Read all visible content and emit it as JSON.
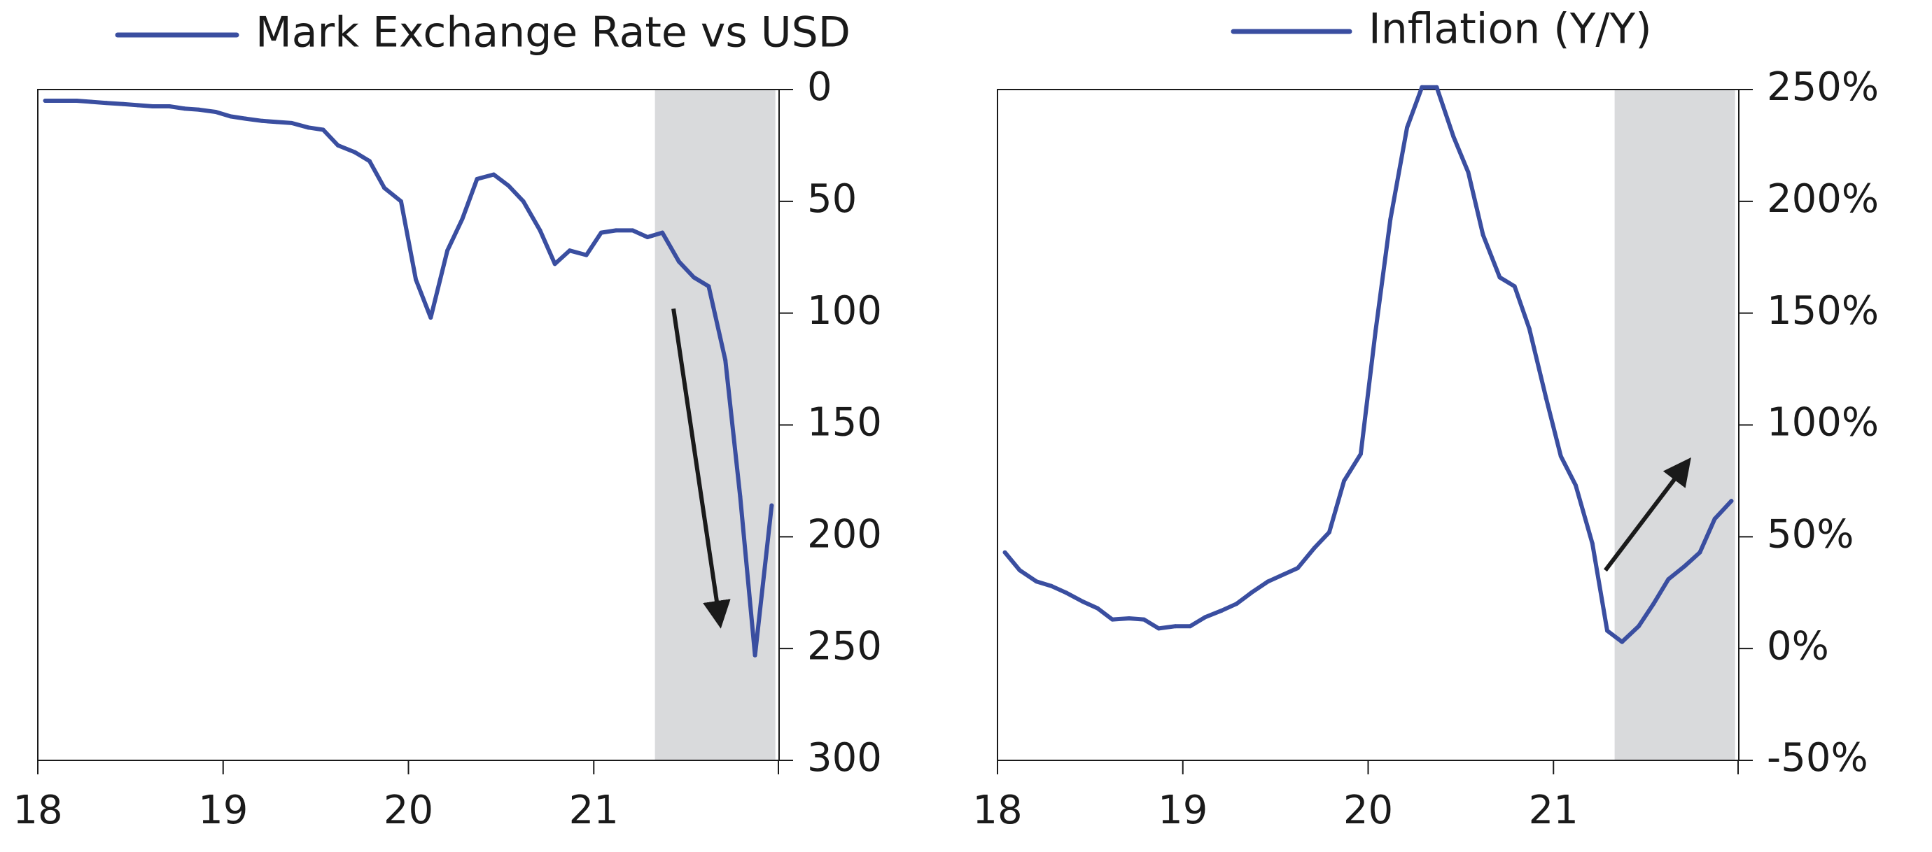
{
  "colors": {
    "series": "#3a4ea0",
    "shade": "#d9dadc",
    "axis": "#1a1a1a",
    "arrow": "#1a1a1a",
    "background": "#ffffff"
  },
  "chart_data": [
    {
      "type": "line",
      "title": "",
      "xlabel": "",
      "ylabel": "",
      "legend": {
        "position": "top",
        "entries": [
          "Mark Exchange Rate vs USD"
        ]
      },
      "y_axis": {
        "side": "right",
        "inverted": true
      },
      "xlim": [
        1918.0,
        1922.0
      ],
      "ylim": [
        0,
        300
      ],
      "x_ticks": [
        1918,
        1919,
        1920,
        1921
      ],
      "x_tick_labels": [
        "18",
        "19",
        "20",
        "21"
      ],
      "y_ticks": [
        0,
        50,
        100,
        150,
        200,
        250,
        300
      ],
      "y_tick_labels": [
        "0",
        "50",
        "100",
        "150",
        "200",
        "250",
        "300"
      ],
      "shaded_region": [
        1921.33,
        1921.98
      ],
      "annotation": {
        "kind": "arrow",
        "direction": "down",
        "from": [
          1921.43,
          98
        ],
        "to": [
          1921.68,
          238
        ]
      },
      "grid": false,
      "series": [
        {
          "name": "Mark Exchange Rate vs USD",
          "x": [
            1918.04,
            1918.12,
            1918.21,
            1918.29,
            1918.37,
            1918.46,
            1918.54,
            1918.62,
            1918.71,
            1918.79,
            1918.87,
            1918.96,
            1919.04,
            1919.12,
            1919.21,
            1919.29,
            1919.37,
            1919.46,
            1919.54,
            1919.62,
            1919.71,
            1919.79,
            1919.87,
            1919.96,
            1920.04,
            1920.12,
            1920.21,
            1920.29,
            1920.37,
            1920.46,
            1920.54,
            1920.62,
            1920.71,
            1920.79,
            1920.87,
            1920.96,
            1921.04,
            1921.12,
            1921.21,
            1921.29,
            1921.37,
            1921.46,
            1921.54,
            1921.62,
            1921.71,
            1921.79,
            1921.87,
            1921.96
          ],
          "values": [
            5,
            5,
            5,
            5.5,
            6,
            6.5,
            7,
            7.5,
            7.5,
            8.5,
            9,
            10,
            12,
            13,
            14,
            14.5,
            15,
            17,
            18,
            25,
            28,
            32,
            44,
            50,
            85,
            102,
            72,
            58,
            40,
            38,
            43,
            50,
            63,
            78,
            72,
            74,
            64,
            63,
            63,
            66,
            64,
            77,
            84,
            88,
            121,
            182,
            253,
            186
          ]
        }
      ]
    },
    {
      "type": "line",
      "title": "",
      "xlabel": "",
      "ylabel": "",
      "legend": {
        "position": "top",
        "entries": [
          "Inflation (Y/Y)"
        ]
      },
      "y_axis": {
        "side": "right",
        "inverted": false,
        "unit": "%"
      },
      "xlim": [
        1918.0,
        1922.0
      ],
      "ylim": [
        -50,
        250
      ],
      "x_ticks": [
        1918,
        1919,
        1920,
        1921
      ],
      "x_tick_labels": [
        "18",
        "19",
        "20",
        "21"
      ],
      "y_ticks": [
        -50,
        0,
        50,
        100,
        150,
        200,
        250
      ],
      "y_tick_labels": [
        "-50%",
        "0%",
        "50%",
        "100%",
        "150%",
        "200%",
        "250%"
      ],
      "shaded_region": [
        1921.33,
        1921.98
      ],
      "annotation": {
        "kind": "arrow",
        "direction": "up",
        "from": [
          1921.28,
          35
        ],
        "to": [
          1921.72,
          83
        ]
      },
      "grid": false,
      "series": [
        {
          "name": "Inflation (Y/Y)",
          "x": [
            1918.04,
            1918.12,
            1918.21,
            1918.29,
            1918.37,
            1918.46,
            1918.54,
            1918.62,
            1918.71,
            1918.79,
            1918.87,
            1918.96,
            1919.04,
            1919.12,
            1919.21,
            1919.29,
            1919.37,
            1919.46,
            1919.54,
            1919.62,
            1919.71,
            1919.79,
            1919.87,
            1919.96,
            1920.04,
            1920.12,
            1920.21,
            1920.29,
            1920.37,
            1920.46,
            1920.54,
            1920.62,
            1920.71,
            1920.79,
            1920.87,
            1920.96,
            1921.04,
            1921.12,
            1921.21,
            1921.29,
            1921.37,
            1921.46,
            1921.54,
            1921.62,
            1921.71,
            1921.79,
            1921.87,
            1921.96
          ],
          "values": [
            43,
            35,
            30,
            28,
            25,
            21,
            18,
            13,
            13.5,
            13,
            9,
            10,
            10,
            14,
            17,
            20,
            25,
            30,
            33,
            36,
            45,
            52,
            75,
            87,
            142,
            192,
            233,
            251,
            251,
            229,
            213,
            185,
            166,
            162,
            143,
            112,
            86,
            73,
            47,
            8,
            3,
            10,
            20,
            31,
            37,
            43,
            58,
            66
          ]
        }
      ]
    }
  ]
}
